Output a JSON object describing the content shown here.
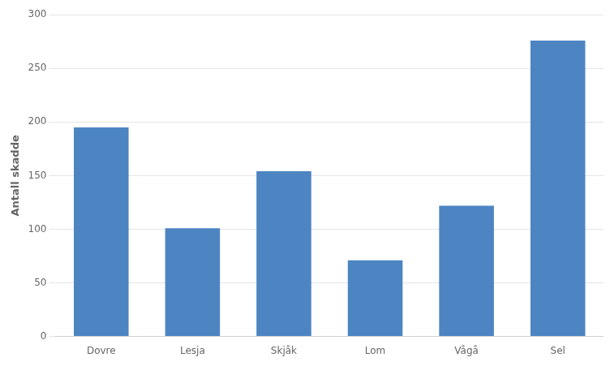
{
  "chart_data": {
    "type": "bar",
    "categories": [
      "Dovre",
      "Lesja",
      "Skjåk",
      "Lom",
      "Vågå",
      "Sel"
    ],
    "values": [
      195,
      101,
      154,
      71,
      122,
      276
    ],
    "color": "#4d85c3",
    "ylabel": "Antall skadde",
    "ylim": [
      0,
      300
    ],
    "yticks": [
      0,
      50,
      100,
      150,
      200,
      250,
      300
    ],
    "grid": true
  }
}
